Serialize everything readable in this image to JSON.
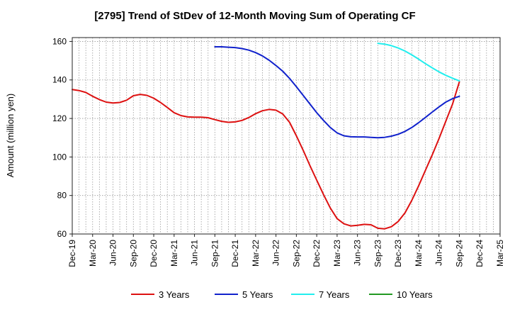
{
  "chart_data": {
    "type": "line",
    "title": "[2795]  Trend of StDev of 12-Month Moving Sum of Operating CF",
    "ylabel": "Amount (million yen)",
    "xlabel": "",
    "ylim": [
      60,
      162
    ],
    "yticks": [
      60,
      80,
      100,
      120,
      140,
      160
    ],
    "x_start": "Dec-19",
    "x_end": "Mar-25",
    "xtick_labels": [
      "Dec-19",
      "Mar-20",
      "Jun-20",
      "Sep-20",
      "Dec-20",
      "Mar-21",
      "Jun-21",
      "Sep-21",
      "Dec-21",
      "Mar-22",
      "Jun-22",
      "Sep-22",
      "Dec-22",
      "Mar-23",
      "Jun-23",
      "Sep-23",
      "Dec-23",
      "Mar-24",
      "Jun-24",
      "Sep-24",
      "Dec-24",
      "Mar-25"
    ],
    "grid": true,
    "legend_position": "bottom",
    "series": [
      {
        "name": "3 Years",
        "color": "#dd1111",
        "points": [
          [
            "Dec-19",
            135
          ],
          [
            "Jan-20",
            134.5
          ],
          [
            "Feb-20",
            133.5
          ],
          [
            "Mar-20",
            131.5
          ],
          [
            "Apr-20",
            129.8
          ],
          [
            "May-20",
            128.5
          ],
          [
            "Jun-20",
            128
          ],
          [
            "Jul-20",
            128.3
          ],
          [
            "Aug-20",
            129.5
          ],
          [
            "Sep-20",
            131.8
          ],
          [
            "Oct-20",
            132.5
          ],
          [
            "Nov-20",
            132
          ],
          [
            "Dec-20",
            130.5
          ],
          [
            "Jan-21",
            128.3
          ],
          [
            "Feb-21",
            125.7
          ],
          [
            "Mar-21",
            123
          ],
          [
            "Apr-21",
            121.5
          ],
          [
            "May-21",
            120.8
          ],
          [
            "Jun-21",
            120.7
          ],
          [
            "Jul-21",
            120.7
          ],
          [
            "Aug-21",
            120.4
          ],
          [
            "Sep-21",
            119.4
          ],
          [
            "Oct-21",
            118.5
          ],
          [
            "Nov-21",
            118
          ],
          [
            "Dec-21",
            118.2
          ],
          [
            "Jan-22",
            119
          ],
          [
            "Feb-22",
            120.5
          ],
          [
            "Mar-22",
            122.5
          ],
          [
            "Apr-22",
            124
          ],
          [
            "May-22",
            124.7
          ],
          [
            "Jun-22",
            124.3
          ],
          [
            "Jul-22",
            122.3
          ],
          [
            "Aug-22",
            118
          ],
          [
            "Sep-22",
            111
          ],
          [
            "Oct-22",
            103.5
          ],
          [
            "Nov-22",
            95.5
          ],
          [
            "Dec-22",
            88
          ],
          [
            "Jan-23",
            80.5
          ],
          [
            "Feb-23",
            73.5
          ],
          [
            "Mar-23",
            68
          ],
          [
            "Apr-23",
            65.3
          ],
          [
            "May-23",
            64.2
          ],
          [
            "Jun-23",
            64.5
          ],
          [
            "Jul-23",
            65
          ],
          [
            "Aug-23",
            64.8
          ],
          [
            "Sep-23",
            63
          ],
          [
            "Oct-23",
            62.7
          ],
          [
            "Nov-23",
            63.8
          ],
          [
            "Dec-23",
            66.5
          ],
          [
            "Jan-24",
            71
          ],
          [
            "Feb-24",
            77.5
          ],
          [
            "Mar-24",
            85
          ],
          [
            "Apr-24",
            93
          ],
          [
            "May-24",
            101
          ],
          [
            "Jun-24",
            109.5
          ],
          [
            "Jul-24",
            118.5
          ],
          [
            "Aug-24",
            127.5
          ],
          [
            "Sep-24",
            139
          ]
        ]
      },
      {
        "name": "5 Years",
        "color": "#1122cc",
        "points": [
          [
            "Sep-21",
            157.2
          ],
          [
            "Oct-21",
            157.2
          ],
          [
            "Nov-21",
            157
          ],
          [
            "Dec-21",
            156.8
          ],
          [
            "Jan-22",
            156.3
          ],
          [
            "Feb-22",
            155.5
          ],
          [
            "Mar-22",
            154.2
          ],
          [
            "Apr-22",
            152.5
          ],
          [
            "May-22",
            150.2
          ],
          [
            "Jun-22",
            147.5
          ],
          [
            "Jul-22",
            144.5
          ],
          [
            "Aug-22",
            140.8
          ],
          [
            "Sep-22",
            136.5
          ],
          [
            "Oct-22",
            132
          ],
          [
            "Nov-22",
            127.5
          ],
          [
            "Dec-22",
            123
          ],
          [
            "Jan-23",
            119
          ],
          [
            "Feb-23",
            115.3
          ],
          [
            "Mar-23",
            112.5
          ],
          [
            "Apr-23",
            111
          ],
          [
            "May-23",
            110.5
          ],
          [
            "Jun-23",
            110.4
          ],
          [
            "Jul-23",
            110.4
          ],
          [
            "Aug-23",
            110.2
          ],
          [
            "Sep-23",
            110
          ],
          [
            "Oct-23",
            110.2
          ],
          [
            "Nov-23",
            110.8
          ],
          [
            "Dec-23",
            111.8
          ],
          [
            "Jan-24",
            113.3
          ],
          [
            "Feb-24",
            115.3
          ],
          [
            "Mar-24",
            117.8
          ],
          [
            "Apr-24",
            120.5
          ],
          [
            "May-24",
            123.3
          ],
          [
            "Jun-24",
            126
          ],
          [
            "Jul-24",
            128.5
          ],
          [
            "Aug-24",
            130.3
          ],
          [
            "Sep-24",
            131.5
          ]
        ]
      },
      {
        "name": "7 Years",
        "color": "#22eeee",
        "points": [
          [
            "Sep-23",
            159
          ],
          [
            "Oct-23",
            158.6
          ],
          [
            "Nov-23",
            157.8
          ],
          [
            "Dec-23",
            156.6
          ],
          [
            "Jan-24",
            155
          ],
          [
            "Feb-24",
            153
          ],
          [
            "Mar-24",
            150.8
          ],
          [
            "Apr-24",
            148.5
          ],
          [
            "May-24",
            146.3
          ],
          [
            "Jun-24",
            144.2
          ],
          [
            "Jul-24",
            142.4
          ],
          [
            "Aug-24",
            140.9
          ],
          [
            "Sep-24",
            139.5
          ]
        ]
      },
      {
        "name": "10 Years",
        "color": "#229922",
        "points": []
      }
    ]
  }
}
